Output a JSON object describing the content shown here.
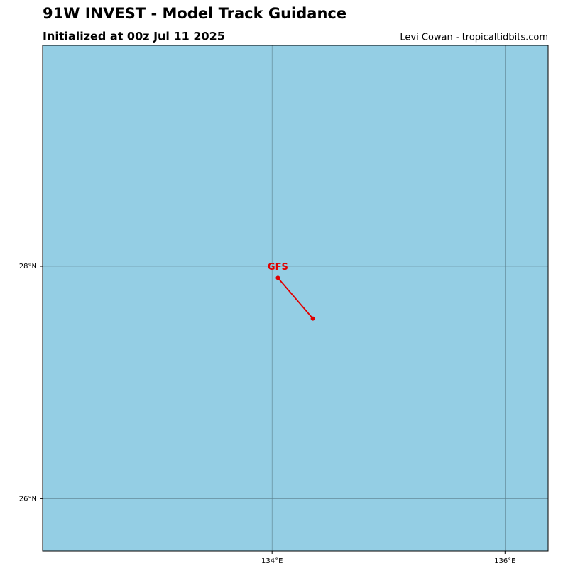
{
  "chart_data": {
    "type": "track",
    "title": "91W INVEST - Model Track Guidance",
    "subtitle": "Initialized at 00z Jul 11 2025",
    "credit": "Levi Cowan - tropicaltidbits.com",
    "background": "#94cee4",
    "grid": true,
    "xlim": [
      132.03,
      136.37
    ],
    "ylim": [
      25.55,
      29.9
    ],
    "xticks": [
      {
        "value": 134,
        "label": "134°E"
      },
      {
        "value": 136,
        "label": "136°E"
      }
    ],
    "yticks": [
      {
        "value": 26,
        "label": "26°N"
      },
      {
        "value": 28,
        "label": "28°N"
      }
    ],
    "series": [
      {
        "name": "GFS",
        "color": "#e00000",
        "x": [
          134.05,
          134.35
        ],
        "values": [
          27.9,
          27.55
        ]
      }
    ]
  }
}
